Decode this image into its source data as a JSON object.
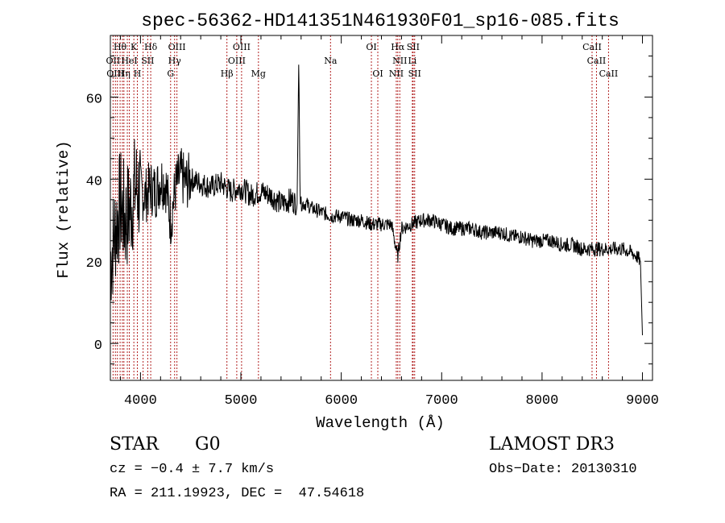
{
  "chart_data": {
    "type": "line",
    "title": "spec-56362-HD141351N461930F01_sp16-085.fits",
    "xlabel": "Wavelength (Å)",
    "ylabel": "Flux (relative)",
    "xlim": [
      3700,
      9100
    ],
    "ylim": [
      -9,
      75
    ],
    "x_ticks": [
      4000,
      5000,
      6000,
      7000,
      8000,
      9000
    ],
    "x_tick_labels": [
      "4000",
      "5000",
      "6000",
      "7000",
      "8000",
      "9000"
    ],
    "y_ticks": [
      0,
      20,
      40,
      60
    ],
    "y_tick_labels": [
      "0",
      "20",
      "40",
      "60"
    ],
    "grid": false,
    "series": [
      {
        "name": "flux",
        "x": [
          3700,
          3750,
          3800,
          3850,
          3900,
          3950,
          4000,
          4050,
          4100,
          4150,
          4200,
          4250,
          4300,
          4350,
          4400,
          4450,
          4500,
          4600,
          4700,
          4800,
          4900,
          5000,
          5100,
          5200,
          5300,
          5400,
          5500,
          5560,
          5577,
          5590,
          5650,
          5700,
          5800,
          5900,
          5950,
          6000,
          6100,
          6200,
          6300,
          6400,
          6500,
          6562,
          6600,
          6700,
          6800,
          6900,
          7000,
          7100,
          7200,
          7300,
          7400,
          7500,
          7600,
          7700,
          7800,
          7900,
          8000,
          8100,
          8200,
          8300,
          8400,
          8500,
          8600,
          8700,
          8800,
          8900,
          8950,
          8980,
          9000
        ],
        "y": [
          20,
          28,
          34,
          30,
          33,
          38,
          37,
          36,
          38,
          37,
          40,
          39,
          30,
          38,
          41,
          39,
          40,
          39,
          38,
          39,
          37,
          38,
          36,
          37,
          36,
          34,
          35,
          34,
          70,
          34,
          34,
          33,
          32,
          31,
          31,
          31,
          30,
          30,
          29,
          29,
          29,
          21,
          28,
          29,
          30,
          30,
          29,
          28,
          28,
          28,
          27,
          27,
          27,
          26,
          26,
          25,
          25,
          25,
          24,
          24,
          23,
          23,
          23,
          23,
          23,
          22,
          21,
          20,
          2
        ]
      }
    ],
    "line_marks": {
      "x": [
        3727,
        3750,
        3770,
        3797,
        3820,
        3835,
        3869,
        3889,
        3934,
        3969,
        4026,
        4072,
        4102,
        4300,
        4340,
        4363,
        4861,
        4959,
        5007,
        5175,
        5893,
        6300,
        6364,
        6548,
        6563,
        6583,
        6708,
        6716,
        6731,
        8498,
        8542,
        8662
      ],
      "labels": [
        {
          "text": "Hθ",
          "x": 3797,
          "row": 1
        },
        {
          "text": "K",
          "x": 3934,
          "row": 1
        },
        {
          "text": "Hδ",
          "x": 4102,
          "row": 1
        },
        {
          "text": "OIII",
          "x": 4363,
          "row": 1
        },
        {
          "text": "OIII",
          "x": 5007,
          "row": 1
        },
        {
          "text": "OI",
          "x": 6300,
          "row": 1
        },
        {
          "text": "Hα",
          "x": 6563,
          "row": 1
        },
        {
          "text": "SII",
          "x": 6716,
          "row": 1
        },
        {
          "text": "CaII",
          "x": 8498,
          "row": 1
        },
        {
          "text": "OII",
          "x": 3727,
          "row": 2
        },
        {
          "text": "HeI",
          "x": 3889,
          "row": 2
        },
        {
          "text": "SII",
          "x": 4072,
          "row": 2
        },
        {
          "text": "Hγ",
          "x": 4340,
          "row": 2
        },
        {
          "text": "OIII",
          "x": 4959,
          "row": 2
        },
        {
          "text": "Na",
          "x": 5893,
          "row": 2
        },
        {
          "text": "NII",
          "x": 6583,
          "row": 2
        },
        {
          "text": "Li",
          "x": 6708,
          "row": 2
        },
        {
          "text": "CaII",
          "x": 8542,
          "row": 2
        },
        {
          "text": "OIII",
          "x": 3750,
          "row": 3
        },
        {
          "text": "Hη",
          "x": 3835,
          "row": 3
        },
        {
          "text": "H",
          "x": 3969,
          "row": 3
        },
        {
          "text": "G",
          "x": 4300,
          "row": 3
        },
        {
          "text": "Hβ",
          "x": 4861,
          "row": 3
        },
        {
          "text": "Mg",
          "x": 5175,
          "row": 3
        },
        {
          "text": "OI",
          "x": 6364,
          "row": 3
        },
        {
          "text": "NII",
          "x": 6548,
          "row": 3
        },
        {
          "text": "SII",
          "x": 6731,
          "row": 3
        },
        {
          "text": "CaII",
          "x": 8662,
          "row": 3
        }
      ]
    },
    "colors": {
      "spectrum": "#000000",
      "line_marks": "#b22222",
      "axes": "#000000"
    }
  },
  "info": {
    "object_class": "STAR",
    "subclass": "G0",
    "survey": "LAMOST DR3",
    "cz": "cz = −0.4 ± 7.7 km/s",
    "obs_date": "Obs−Date: 20130310",
    "coords": "RA = 211.19923, DEC =  47.54618"
  }
}
